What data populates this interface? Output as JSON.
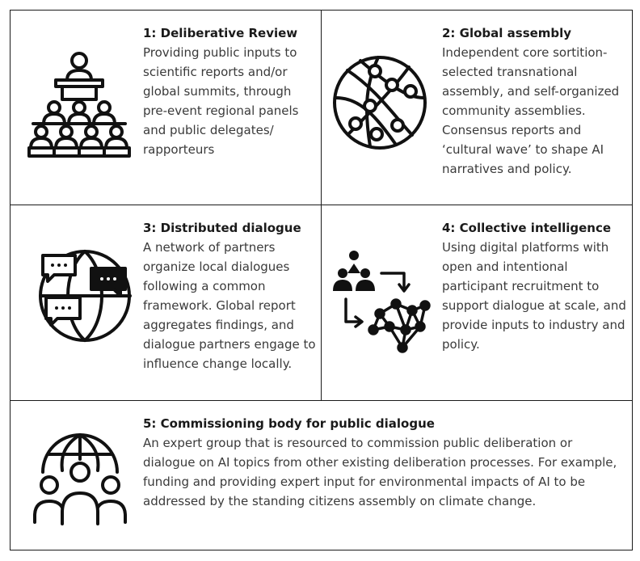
{
  "panels": [
    {
      "title": "1: Deliberative Review",
      "body": "Providing public inputs to scientific reports and/or global summits, through pre-event regional panels and public delegates/ rapporteurs",
      "icon": "deliberation-panel-icon"
    },
    {
      "title": "2: Global assembly",
      "body": "Independent core sortition-selected transnational assembly, and self-organized community assemblies. Consensus reports and ‘cultural wave’ to shape AI narratives and policy.",
      "icon": "globe-network-icon"
    },
    {
      "title": "3: Distributed dialogue",
      "body": "A network of partners organize local dialogues following a common framework. Global report aggregates findings, and dialogue partners engage to influence change locally.",
      "icon": "globe-chat-icon"
    },
    {
      "title": "4: Collective intelligence",
      "body": "Using digital platforms with open and intentional participant recruitment to support dialogue at scale, and provide inputs to industry and policy.",
      "icon": "collective-network-icon"
    },
    {
      "title": "5: Commissioning body for public dialogue",
      "body": "An expert group that is resourced to commission public deliberation or dialogue on AI topics from other existing deliberation processes. For example, funding and providing expert input for environmental impacts of AI to be addressed by the standing citizens assembly on climate change.",
      "icon": "globe-community-icon"
    }
  ],
  "colors": {
    "border": "#1a1a1a",
    "title": "#1a1a1a",
    "body": "#3a3a3a",
    "icon": "#111111"
  }
}
